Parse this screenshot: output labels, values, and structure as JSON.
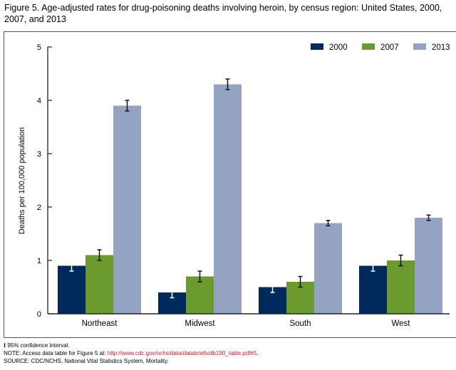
{
  "figure": {
    "title": "Figure 5. Age-adjusted rates for drug-poisoning deaths involving heroin, by census region: United States, 2000, 2007, and 2013"
  },
  "footnotes": {
    "ci_symbol": "I",
    "ci_text": " 95% confidence interval.",
    "note_prefix": "NOTE: Access data table for Figure 5 at: ",
    "note_link": "http://www.cdc.gov/nchs/data/databriefs/db190_table.pdf#5",
    "note_suffix": ".",
    "source": "SOURCE: CDC/NCHS, National Vital Statistics System, Mortality."
  },
  "chart_data": {
    "type": "bar",
    "title": "Figure 5. Age-adjusted rates for drug-poisoning deaths involving heroin, by census region: United States, 2000, 2007, and 2013",
    "xlabel": "",
    "ylabel": "Deaths per 100,000 population",
    "ylim": [
      0,
      5
    ],
    "yticks": [
      "0",
      "1",
      "2",
      "3",
      "4",
      "5"
    ],
    "grid": false,
    "legend_position": "top-right",
    "categories": [
      "Northeast",
      "Midwest",
      "South",
      "West"
    ],
    "series": [
      {
        "name": "2000",
        "color": "#002a5c",
        "errorbar_color": "#ffffff",
        "values": [
          0.9,
          0.4,
          0.5,
          0.9
        ],
        "ci_low": [
          0.8,
          0.3,
          0.4,
          0.8
        ],
        "ci_high": [
          1.0,
          0.5,
          0.6,
          1.0
        ]
      },
      {
        "name": "2007",
        "color": "#6b9a2f",
        "errorbar_color": "#111111",
        "values": [
          1.1,
          0.7,
          0.6,
          1.0
        ],
        "ci_low": [
          1.0,
          0.6,
          0.5,
          0.9
        ],
        "ci_high": [
          1.2,
          0.8,
          0.7,
          1.1
        ]
      },
      {
        "name": "2013",
        "color": "#95a3c2",
        "errorbar_color": "#111111",
        "values": [
          3.9,
          4.3,
          1.7,
          1.8
        ],
        "ci_low": [
          3.8,
          4.2,
          1.65,
          1.75
        ],
        "ci_high": [
          4.0,
          4.4,
          1.75,
          1.85
        ]
      }
    ]
  }
}
